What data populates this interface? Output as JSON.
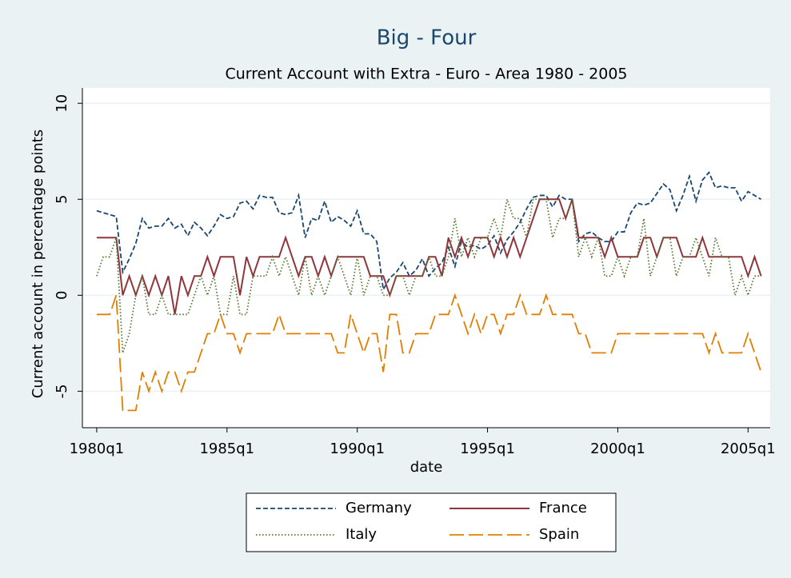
{
  "chart_data": {
    "type": "line",
    "title": "Big - Four",
    "subtitle": "Current Account with Extra - Euro - Area 1980 - 2005",
    "x_label": "date",
    "y_label": "Current account in percentage points",
    "x": [
      80,
      81,
      82,
      83,
      84,
      85,
      86,
      87,
      88,
      89,
      90,
      91,
      92,
      93,
      94,
      95,
      96,
      97,
      98,
      99,
      100,
      101,
      102,
      103,
      104,
      105,
      106,
      107,
      108,
      109,
      110,
      111,
      112,
      113,
      114,
      115,
      116,
      117,
      118,
      119,
      120,
      121,
      122,
      123,
      124,
      125,
      126,
      127,
      128,
      129,
      130,
      131,
      132,
      133,
      134,
      135,
      136,
      137,
      138,
      139,
      140,
      141,
      142,
      143,
      144,
      145,
      146,
      147,
      148,
      149,
      150,
      151,
      152,
      153,
      154,
      155,
      156,
      157,
      158,
      159,
      160,
      161,
      162,
      163,
      164,
      165,
      166,
      167,
      168,
      169,
      170,
      171,
      172,
      173,
      174,
      175,
      176,
      177,
      178,
      179,
      180,
      181,
      182
    ],
    "series": [
      {
        "name": "Germany",
        "color": "#1a476f",
        "style": "dash",
        "values": [
          4.4,
          4.3,
          4.2,
          4.1,
          1.2,
          1.9,
          2.7,
          4.0,
          3.5,
          3.6,
          3.6,
          4.0,
          3.5,
          3.7,
          3.1,
          3.8,
          3.5,
          3.1,
          3.6,
          4.2,
          4.0,
          4.1,
          4.8,
          4.9,
          4.5,
          5.2,
          5.1,
          5.1,
          4.3,
          4.2,
          4.3,
          5.2,
          3.0,
          4.0,
          3.9,
          4.9,
          3.8,
          4.1,
          3.9,
          3.6,
          4.4,
          3.2,
          3.2,
          2.8,
          0.3,
          0.9,
          1.2,
          1.7,
          1.0,
          1.3,
          1.9,
          1.0,
          1.4,
          1.7,
          2.5,
          1.5,
          2.8,
          2.5,
          2.6,
          2.4,
          2.6,
          3.1,
          2.2,
          2.9,
          3.3,
          3.8,
          4.5,
          5.1,
          5.2,
          5.2,
          4.6,
          5.2,
          5.0,
          5.0,
          2.8,
          3.2,
          3.3,
          3.0,
          2.8,
          2.8,
          3.3,
          3.3,
          4.3,
          4.8,
          4.7,
          4.8,
          5.3,
          5.8,
          5.5,
          4.4,
          5.2,
          6.2,
          4.9,
          6.0,
          6.4,
          5.6,
          5.7,
          5.6,
          5.6,
          4.9,
          5.4,
          5.2,
          5.0
        ]
      },
      {
        "name": "France",
        "color": "#90353b",
        "style": "solid",
        "values": [
          3,
          3,
          3,
          3,
          0,
          1,
          0,
          1,
          0,
          1,
          0,
          1,
          -1,
          1,
          0,
          1,
          1,
          2,
          1,
          2,
          2,
          2,
          0,
          2,
          1,
          2,
          2,
          2,
          2,
          3,
          2,
          1,
          2,
          2,
          1,
          2,
          1,
          2,
          2,
          2,
          2,
          2,
          1,
          1,
          1,
          0,
          1,
          1,
          1,
          1,
          1,
          2,
          2,
          1,
          3,
          2,
          3,
          2,
          3,
          3,
          3,
          2,
          3,
          2,
          3,
          2,
          3,
          4,
          5,
          5,
          5,
          5,
          4,
          5,
          3,
          3,
          3,
          3,
          2,
          3,
          2,
          2,
          2,
          2,
          3,
          3,
          2,
          3,
          3,
          3,
          2,
          2,
          2,
          3,
          2,
          2,
          2,
          2,
          2,
          2,
          1,
          2,
          1
        ]
      },
      {
        "name": "Italy",
        "color": "#55752f",
        "style": "dot",
        "values": [
          1,
          2,
          2,
          3,
          -3,
          -2,
          0,
          1,
          -1,
          -1,
          0,
          -1,
          -1,
          -1,
          -1,
          0,
          1,
          0,
          1,
          -1,
          -1,
          1,
          -1,
          -1,
          1,
          1,
          1,
          2,
          1,
          2,
          1,
          0,
          2,
          0,
          1,
          0,
          1,
          2,
          1,
          0,
          2,
          0,
          1,
          1,
          0,
          0,
          1,
          1,
          0,
          1,
          1,
          2,
          1,
          1,
          2,
          4,
          2,
          3,
          2,
          3,
          3,
          4,
          3,
          5,
          4,
          4,
          3,
          5,
          5,
          5,
          3,
          4,
          4,
          5,
          2,
          3,
          2,
          3,
          1,
          1,
          2,
          1,
          2,
          2,
          4,
          1,
          2,
          3,
          3,
          1,
          2,
          2,
          3,
          2,
          1,
          3,
          2,
          2,
          0,
          1,
          0,
          1,
          1
        ]
      },
      {
        "name": "Spain",
        "color": "#e37e00",
        "style": "longdash",
        "values": [
          -1,
          -1,
          -1,
          0,
          -6,
          -6,
          -6,
          -4,
          -5,
          -4,
          -5,
          -4,
          -4,
          -5,
          -4,
          -4,
          -3,
          -2,
          -2,
          -1,
          -2,
          -2,
          -3,
          -2,
          -2,
          -2,
          -2,
          -2,
          -1,
          -2,
          -2,
          -2,
          -2,
          -2,
          -2,
          -2,
          -2,
          -3,
          -3,
          -1,
          -2,
          -3,
          -2,
          -2,
          -4,
          -1,
          -1,
          -3,
          -3,
          -2,
          -2,
          -2,
          -1,
          -1,
          -1,
          0,
          -1,
          -2,
          -1,
          -2,
          -1,
          -1,
          -2,
          -1,
          -1,
          0,
          -1,
          -1,
          -1,
          0,
          -1,
          -1,
          -1,
          -1,
          -2,
          -2,
          -3,
          -3,
          -3,
          -3,
          -2,
          -2,
          -2,
          -2,
          -2,
          -2,
          -2,
          -2,
          -2,
          -2,
          -2,
          -2,
          -2,
          -2,
          -3,
          -2,
          -3,
          -3,
          -3,
          -3,
          -2,
          -3,
          -4
        ]
      }
    ],
    "xlim": [
      77.8,
      183.4
    ],
    "xticks": [
      {
        "value": 80,
        "label": "1980q1"
      },
      {
        "value": 100,
        "label": "1985q1"
      },
      {
        "value": 120,
        "label": "1990q1"
      },
      {
        "value": 140,
        "label": "1995q1"
      },
      {
        "value": 160,
        "label": "2000q1"
      },
      {
        "value": 180,
        "label": "2005q1"
      }
    ],
    "ylim": [
      -6.9,
      10.8
    ],
    "yticks": [
      -5,
      0,
      5,
      10
    ],
    "grid": true,
    "legend": "bottom"
  }
}
